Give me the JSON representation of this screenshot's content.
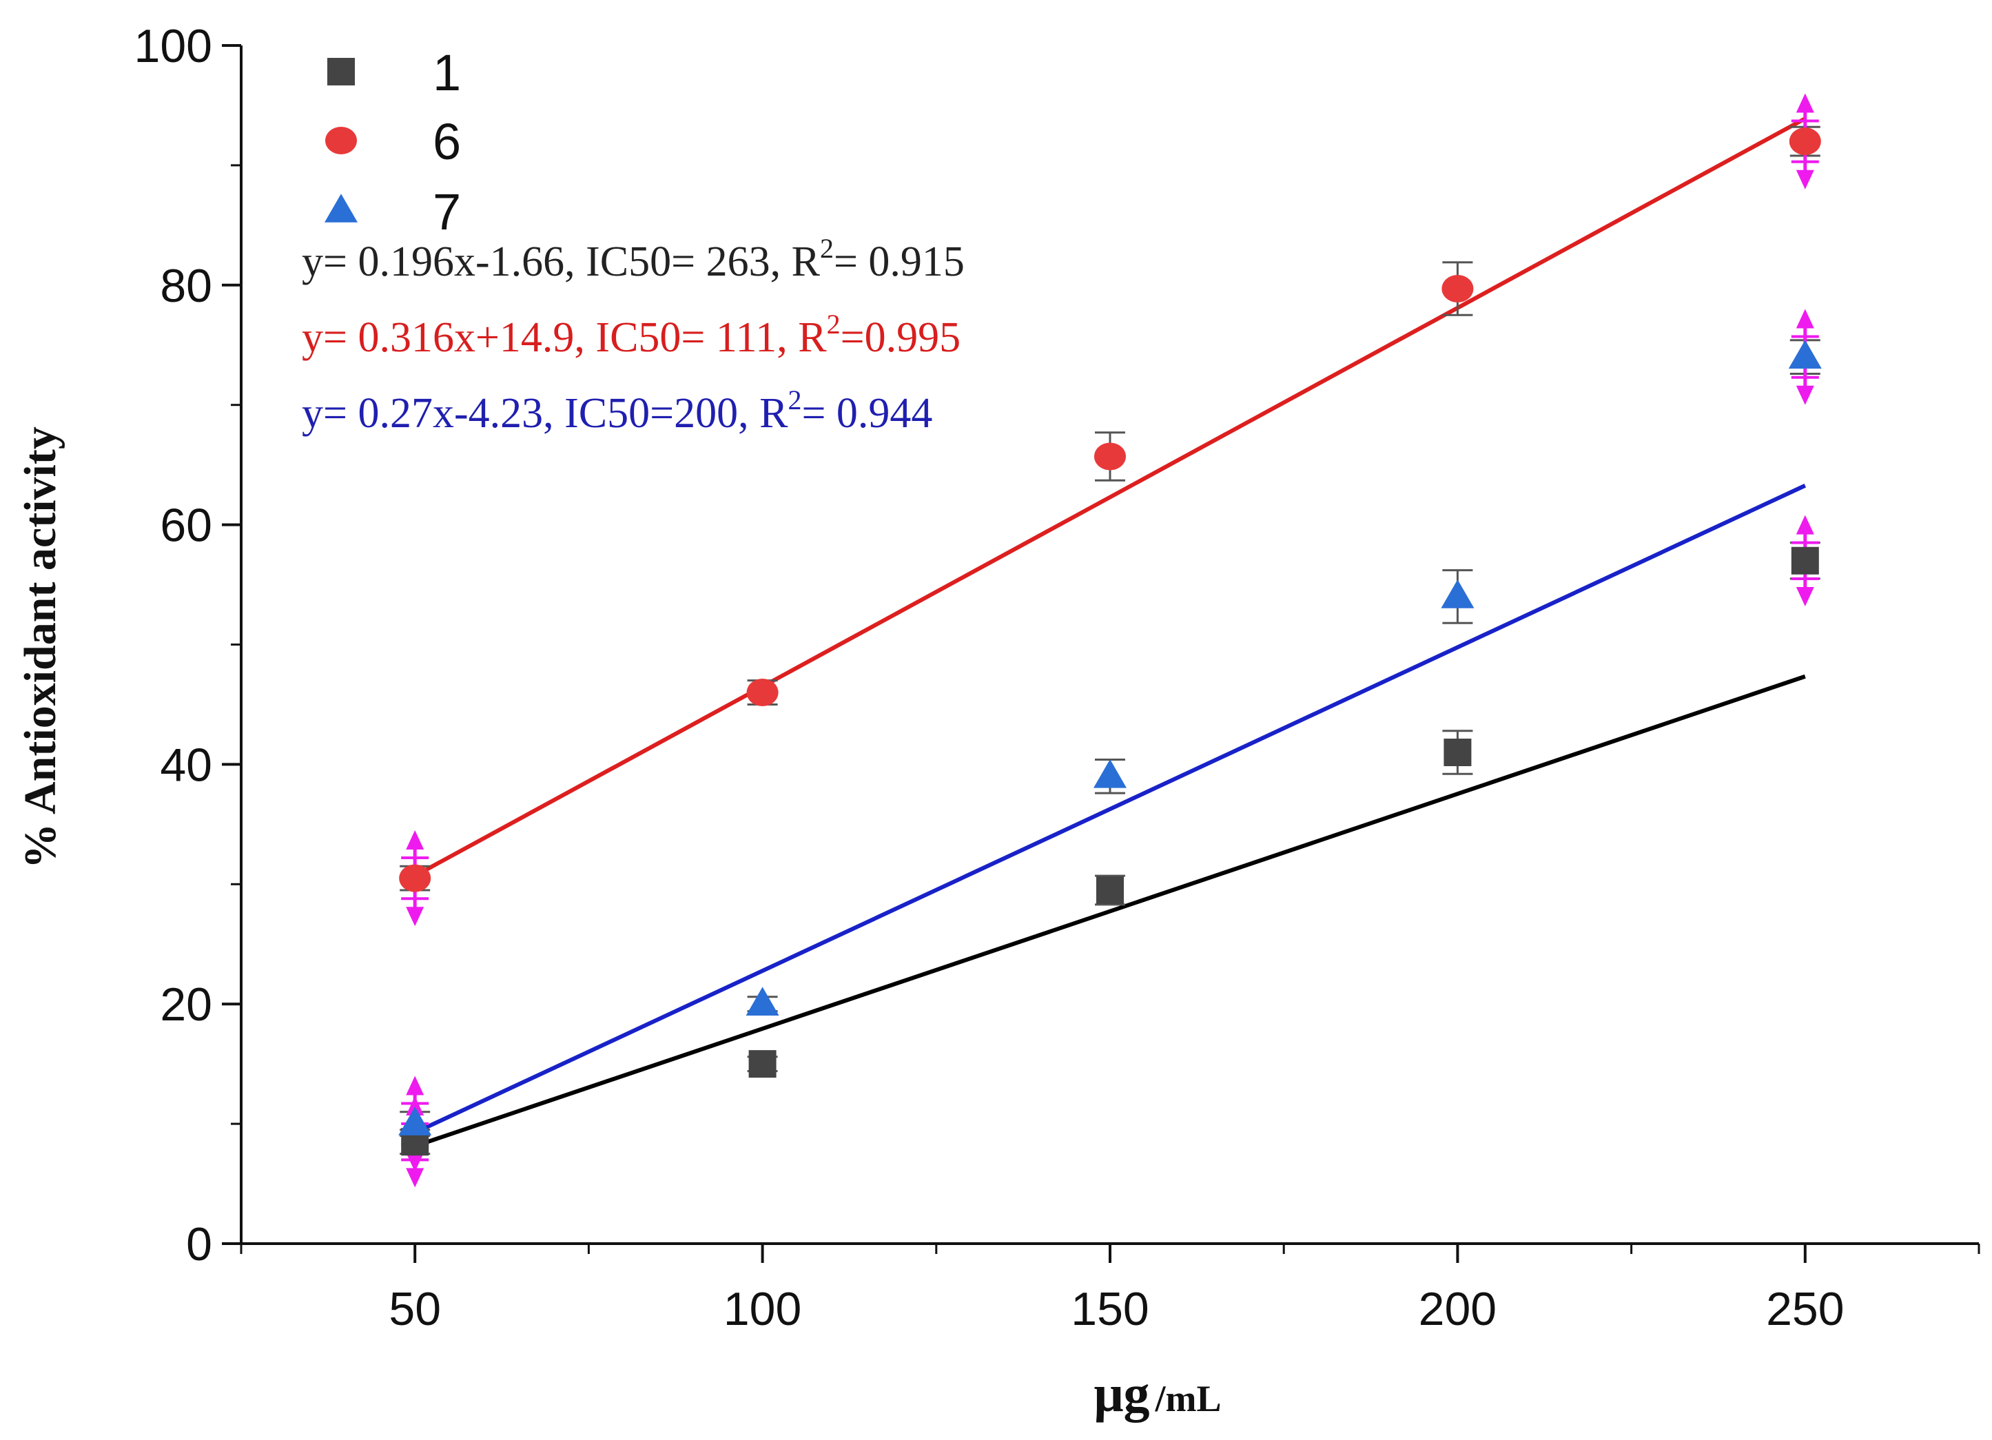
{
  "chart_data": {
    "type": "scatter",
    "title": "",
    "xlabel": "μg",
    "xlabel_unit": "/mL",
    "ylabel": "% Antioxidant activity",
    "xlim": [
      25,
      275
    ],
    "ylim": [
      0,
      100
    ],
    "x_ticks": [
      50,
      100,
      150,
      200,
      250
    ],
    "x_minor_ticks": [
      25,
      75,
      125,
      175,
      225,
      275
    ],
    "y_ticks": [
      0,
      20,
      40,
      60,
      80,
      100
    ],
    "y_minor_ticks": [
      10,
      30,
      50,
      70,
      90
    ],
    "grid": false,
    "legend_position": "top-left",
    "series": [
      {
        "name": "1",
        "marker": "square",
        "color": "#444444",
        "line_color": "#000000",
        "x": [
          50,
          100,
          150,
          200,
          250
        ],
        "values": [
          8.5,
          15.0,
          29.5,
          41.0,
          57.0
        ],
        "errors": [
          1.0,
          0.6,
          1.2,
          1.8,
          1.5
        ],
        "fit": {
          "slope": 0.196,
          "intercept": -1.66,
          "x_range": [
            50,
            250
          ]
        },
        "equation_label": {
          "pre": "y= 0.196x-1.66, IC50= 263, R",
          "sup": "2",
          "post": "= 0.915"
        }
      },
      {
        "name": "6",
        "marker": "circle",
        "color": "#e8393a",
        "line_color": "#dd1f1f",
        "x": [
          50,
          100,
          150,
          200,
          250
        ],
        "values": [
          30.5,
          46.0,
          65.7,
          79.7,
          92.0
        ],
        "errors": [
          1.0,
          1.0,
          2.0,
          2.2,
          1.2
        ],
        "fit": {
          "slope": 0.316,
          "intercept": 14.9,
          "x_range": [
            50,
            250
          ]
        },
        "equation_label": {
          "pre": "y= 0.316x+14.9, IC50= 111, R",
          "sup": "2",
          "post": "=0.995"
        }
      },
      {
        "name": "7",
        "marker": "triangle",
        "color": "#2a6fd6",
        "line_color": "#1822c8",
        "x": [
          50,
          100,
          150,
          200,
          250
        ],
        "values": [
          10.0,
          20.0,
          39.0,
          54.0,
          74.0
        ],
        "errors": [
          1.0,
          0.6,
          1.4,
          2.2,
          1.4
        ],
        "fit": {
          "slope": 0.27,
          "intercept": -4.23,
          "x_range": [
            50,
            250
          ]
        },
        "equation_label": {
          "pre": "y= 0.27x-4.23, IC50=200, R",
          "sup": "2",
          "post": "= 0.944"
        }
      }
    ],
    "highlight_markers": {
      "color": "#ee1aee",
      "points": [
        {
          "x": 50,
          "y": 30.5,
          "spread": 3.2
        },
        {
          "x": 50,
          "y": 10.0,
          "spread": 3.2
        },
        {
          "x": 50,
          "y": 8.5,
          "spread": 3.0
        },
        {
          "x": 250,
          "y": 92.0,
          "spread": 3.2
        },
        {
          "x": 250,
          "y": 74.0,
          "spread": 3.2
        },
        {
          "x": 250,
          "y": 57.0,
          "spread": 3.0
        }
      ]
    }
  }
}
